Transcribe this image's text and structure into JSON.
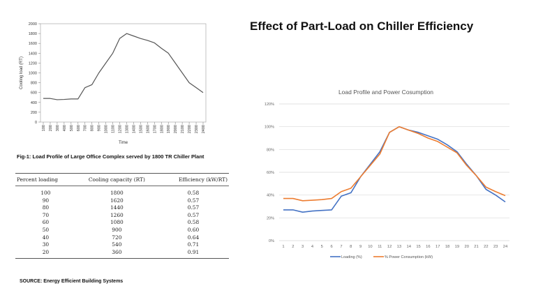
{
  "title": "Effect of Part-Load on Chiller Efficiency",
  "caption": "Fig-1: Load Profile of Large Office Complex served by 1800 TR Chiller Plant",
  "source": "SOURCE: Energy Efficient Building Systems",
  "table": {
    "headers": [
      "Percent loading",
      "Cooling capacity (RT)",
      "Efficiency (kW/RT)"
    ],
    "rows": [
      [
        "100",
        "1800",
        "0.58"
      ],
      [
        "90",
        "1620",
        "0.57"
      ],
      [
        "80",
        "1440",
        "0.57"
      ],
      [
        "70",
        "1260",
        "0.57"
      ],
      [
        "60",
        "1080",
        "0.58"
      ],
      [
        "50",
        "900",
        "0.60"
      ],
      [
        "40",
        "720",
        "0.64"
      ],
      [
        "30",
        "540",
        "0.71"
      ],
      [
        "20",
        "360",
        "0.91"
      ]
    ]
  },
  "chart_data": [
    {
      "type": "line",
      "title": "",
      "xlabel": "Time",
      "ylabel": "Cooling load (RT)",
      "ylim": [
        0,
        2000
      ],
      "yticks": [
        "0",
        "200",
        "400",
        "600",
        "800",
        "1000",
        "1200",
        "1400",
        "1600",
        "1800",
        "2000"
      ],
      "categories": [
        "100",
        "200",
        "300",
        "400",
        "500",
        "600",
        "700",
        "800",
        "900",
        "1000",
        "1100",
        "1200",
        "1300",
        "1400",
        "1500",
        "1600",
        "1700",
        "1800",
        "1900",
        "2000",
        "2100",
        "2200",
        "2300",
        "2400"
      ],
      "series": [
        {
          "values": [
            480,
            480,
            455,
            460,
            470,
            470,
            700,
            760,
            1000,
            1200,
            1400,
            1700,
            1800,
            1750,
            1700,
            1660,
            1610,
            1500,
            1400,
            1200,
            1000,
            800,
            700,
            600
          ],
          "color": "#555555"
        }
      ],
      "grid": false
    },
    {
      "type": "line",
      "title": "Load Profile and Power Cosumption",
      "ylim": [
        0,
        1.2
      ],
      "yticks": [
        "0%",
        "20%",
        "40%",
        "60%",
        "80%",
        "100%",
        "120%"
      ],
      "categories": [
        "1",
        "2",
        "3",
        "4",
        "5",
        "6",
        "7",
        "8",
        "9",
        "10",
        "11",
        "12",
        "13",
        "14",
        "15",
        "16",
        "17",
        "18",
        "19",
        "20",
        "21",
        "22",
        "23",
        "24"
      ],
      "series": [
        {
          "name": "Loading (%)",
          "color": "#4472C4",
          "values": [
            0.27,
            0.27,
            0.25,
            0.26,
            0.265,
            0.27,
            0.39,
            0.42,
            0.56,
            0.67,
            0.78,
            0.95,
            1.0,
            0.97,
            0.95,
            0.92,
            0.89,
            0.84,
            0.78,
            0.67,
            0.57,
            0.45,
            0.4,
            0.34
          ]
        },
        {
          "name": "% Power Consumption (kW)",
          "color": "#ED7D31",
          "values": [
            0.37,
            0.37,
            0.35,
            0.355,
            0.36,
            0.37,
            0.43,
            0.46,
            0.56,
            0.66,
            0.76,
            0.95,
            1.0,
            0.97,
            0.94,
            0.9,
            0.87,
            0.82,
            0.77,
            0.66,
            0.57,
            0.47,
            0.43,
            0.395
          ]
        }
      ],
      "grid": true,
      "legend": "bottom"
    }
  ]
}
